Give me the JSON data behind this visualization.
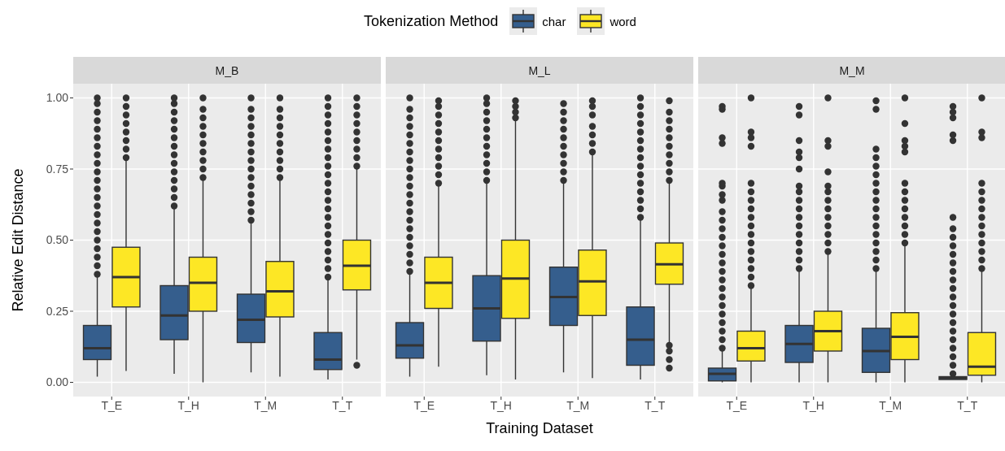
{
  "chart_data": [
    {
      "type": "box",
      "title": "M_B",
      "ylabel": "Relative Edit Distance",
      "legend_title": "Tokenization Method",
      "legend": "top",
      "grid": true,
      "categories": [
        "T_E",
        "T_H",
        "T_M",
        "T_T"
      ],
      "ylim": [
        -0.05,
        1.05
      ],
      "yticks": [
        {
          "value": 0,
          "label": "0.00"
        },
        {
          "value": 0.25,
          "label": "0.25"
        },
        {
          "value": 0.5,
          "label": "0.50"
        },
        {
          "value": 0.75,
          "label": "0.75"
        },
        {
          "value": 1,
          "label": "1.00"
        }
      ],
      "series": [
        {
          "name": "char",
          "color": "#355e8d",
          "boxes": [
            {
              "low": 0.02,
              "q1": 0.08,
              "median": 0.12,
              "q3": 0.2,
              "high": 0.37,
              "outliers": [
                0.38,
                0.41,
                0.44,
                0.47,
                0.5,
                0.53,
                0.56,
                0.59,
                0.62,
                0.65,
                0.68,
                0.71,
                0.74,
                0.77,
                0.8,
                0.83,
                0.86,
                0.89,
                0.92,
                0.95,
                0.98,
                1.0
              ]
            },
            {
              "low": 0.03,
              "q1": 0.15,
              "median": 0.235,
              "q3": 0.34,
              "high": 0.61,
              "outliers": [
                0.62,
                0.65,
                0.68,
                0.71,
                0.74,
                0.77,
                0.8,
                0.83,
                0.86,
                0.89,
                0.92,
                0.95,
                0.98,
                1.0
              ]
            },
            {
              "low": 0.035,
              "q1": 0.14,
              "median": 0.22,
              "q3": 0.31,
              "high": 0.56,
              "outliers": [
                0.57,
                0.6,
                0.63,
                0.66,
                0.69,
                0.72,
                0.75,
                0.78,
                0.81,
                0.84,
                0.87,
                0.9,
                0.93,
                0.96,
                1.0
              ]
            },
            {
              "low": 0.01,
              "q1": 0.045,
              "median": 0.08,
              "q3": 0.175,
              "high": 0.36,
              "outliers": [
                0.37,
                0.4,
                0.43,
                0.46,
                0.49,
                0.52,
                0.55,
                0.58,
                0.61,
                0.64,
                0.67,
                0.7,
                0.73,
                0.76,
                0.79,
                0.82,
                0.85,
                0.88,
                0.91,
                0.94,
                0.97,
                1.0
              ]
            }
          ]
        },
        {
          "name": "word",
          "color": "#fde725",
          "boxes": [
            {
              "low": 0.04,
              "q1": 0.265,
              "median": 0.37,
              "q3": 0.475,
              "high": 0.78,
              "outliers": [
                0.79,
                0.82,
                0.85,
                0.88,
                0.91,
                0.94,
                0.97,
                1.0
              ]
            },
            {
              "low": 0.0,
              "q1": 0.25,
              "median": 0.35,
              "q3": 0.44,
              "high": 0.71,
              "outliers": [
                0.72,
                0.75,
                0.78,
                0.81,
                0.84,
                0.87,
                0.9,
                0.93,
                0.96,
                1.0
              ]
            },
            {
              "low": 0.02,
              "q1": 0.23,
              "median": 0.32,
              "q3": 0.425,
              "high": 0.71,
              "outliers": [
                0.72,
                0.75,
                0.78,
                0.81,
                0.84,
                0.87,
                0.9,
                0.93,
                0.96,
                1.0
              ]
            },
            {
              "low": 0.08,
              "q1": 0.325,
              "median": 0.41,
              "q3": 0.5,
              "high": 0.75,
              "outliers": [
                0.06,
                0.76,
                0.79,
                0.82,
                0.85,
                0.88,
                0.91,
                0.94,
                0.97,
                1.0
              ]
            }
          ]
        }
      ]
    },
    {
      "type": "box",
      "title": "M_L",
      "xlabel": "Training Dataset",
      "grid": true,
      "tick_labels": "x",
      "categories": [
        "T_E",
        "T_H",
        "T_M",
        "T_T"
      ],
      "ylim": [
        -0.05,
        1.05
      ],
      "yticks": [
        0,
        0.25,
        0.5,
        0.75,
        1
      ],
      "series": [
        {
          "color": "#355e8d",
          "boxes": [
            {
              "low": 0.02,
              "q1": 0.085,
              "median": 0.13,
              "q3": 0.21,
              "high": 0.38,
              "outliers": [
                0.39,
                0.42,
                0.45,
                0.48,
                0.51,
                0.54,
                0.57,
                0.6,
                0.63,
                0.66,
                0.69,
                0.72,
                0.75,
                0.78,
                0.81,
                0.84,
                0.87,
                0.9,
                0.93,
                0.96,
                1.0
              ]
            },
            {
              "low": 0.025,
              "q1": 0.145,
              "median": 0.26,
              "q3": 0.375,
              "high": 0.7,
              "outliers": [
                0.71,
                0.74,
                0.77,
                0.8,
                0.83,
                0.86,
                0.89,
                0.92,
                0.95,
                0.98,
                1.0
              ]
            },
            {
              "low": 0.035,
              "q1": 0.2,
              "median": 0.3,
              "q3": 0.405,
              "high": 0.7,
              "outliers": [
                0.71,
                0.74,
                0.77,
                0.8,
                0.83,
                0.86,
                0.89,
                0.92,
                0.95,
                0.98
              ]
            },
            {
              "low": 0.01,
              "q1": 0.06,
              "median": 0.15,
              "q3": 0.265,
              "high": 0.57,
              "outliers": [
                0.58,
                0.61,
                0.64,
                0.67,
                0.7,
                0.73,
                0.76,
                0.79,
                0.82,
                0.85,
                0.88,
                0.91,
                0.94,
                0.97,
                1.0
              ]
            }
          ]
        },
        {
          "color": "#fde725",
          "boxes": [
            {
              "low": 0.055,
              "q1": 0.26,
              "median": 0.35,
              "q3": 0.44,
              "high": 0.69,
              "outliers": [
                0.7,
                0.73,
                0.76,
                0.79,
                0.82,
                0.85,
                0.88,
                0.91,
                0.94,
                0.97,
                0.99
              ]
            },
            {
              "low": 0.01,
              "q1": 0.225,
              "median": 0.365,
              "q3": 0.5,
              "high": 0.92,
              "outliers": [
                0.93,
                0.95,
                0.97,
                0.99
              ]
            },
            {
              "low": 0.015,
              "q1": 0.235,
              "median": 0.355,
              "q3": 0.465,
              "high": 0.8,
              "outliers": [
                0.81,
                0.84,
                0.87,
                0.9,
                0.94,
                0.97,
                0.99
              ]
            },
            {
              "low": 0.14,
              "q1": 0.345,
              "median": 0.415,
              "q3": 0.49,
              "high": 0.7,
              "outliers": [
                0.05,
                0.08,
                0.11,
                0.13,
                0.71,
                0.74,
                0.77,
                0.8,
                0.83,
                0.86,
                0.89,
                0.92,
                0.95,
                0.99
              ]
            }
          ]
        }
      ]
    },
    {
      "type": "box",
      "title": "M_M",
      "grid": true,
      "tick_labels": "x",
      "categories": [
        "T_E",
        "T_H",
        "T_M",
        "T_T"
      ],
      "ylim": [
        -0.05,
        1.05
      ],
      "yticks": [
        0,
        0.25,
        0.5,
        0.75,
        1
      ],
      "series": [
        {
          "color": "#355e8d",
          "boxes": [
            {
              "low": 0.0,
              "q1": 0.005,
              "median": 0.03,
              "q3": 0.05,
              "high": 0.11,
              "outliers": [
                0.12,
                0.15,
                0.18,
                0.21,
                0.24,
                0.27,
                0.3,
                0.33,
                0.36,
                0.39,
                0.42,
                0.45,
                0.48,
                0.51,
                0.54,
                0.57,
                0.6,
                0.64,
                0.66,
                0.69,
                0.7,
                0.84,
                0.86,
                0.96,
                0.97
              ]
            },
            {
              "low": 0.0,
              "q1": 0.07,
              "median": 0.135,
              "q3": 0.2,
              "high": 0.39,
              "outliers": [
                0.4,
                0.43,
                0.46,
                0.49,
                0.52,
                0.55,
                0.58,
                0.61,
                0.64,
                0.67,
                0.69,
                0.75,
                0.79,
                0.81,
                0.85,
                0.94,
                0.97
              ]
            },
            {
              "low": 0.0,
              "q1": 0.035,
              "median": 0.11,
              "q3": 0.19,
              "high": 0.39,
              "outliers": [
                0.4,
                0.43,
                0.46,
                0.49,
                0.52,
                0.55,
                0.58,
                0.61,
                0.64,
                0.67,
                0.7,
                0.73,
                0.76,
                0.79,
                0.82,
                0.96,
                0.99
              ]
            },
            {
              "low": 0.01,
              "q1": 0.01,
              "median": 0.015,
              "q3": 0.02,
              "high": 0.02,
              "outliers": [
                0.03,
                0.06,
                0.09,
                0.12,
                0.15,
                0.18,
                0.21,
                0.24,
                0.27,
                0.3,
                0.33,
                0.36,
                0.39,
                0.42,
                0.45,
                0.48,
                0.51,
                0.54,
                0.58,
                0.85,
                0.87,
                0.93,
                0.95,
                0.97
              ]
            }
          ]
        },
        {
          "color": "#fde725",
          "boxes": [
            {
              "low": 0.0,
              "q1": 0.075,
              "median": 0.12,
              "q3": 0.18,
              "high": 0.33,
              "outliers": [
                0.34,
                0.37,
                0.4,
                0.43,
                0.46,
                0.49,
                0.52,
                0.55,
                0.58,
                0.61,
                0.64,
                0.67,
                0.7,
                0.83,
                0.86,
                0.88,
                1.0
              ]
            },
            {
              "low": 0.0,
              "q1": 0.11,
              "median": 0.18,
              "q3": 0.25,
              "high": 0.45,
              "outliers": [
                0.46,
                0.49,
                0.52,
                0.55,
                0.58,
                0.61,
                0.64,
                0.67,
                0.69,
                0.74,
                0.83,
                0.85,
                1.0
              ]
            },
            {
              "low": 0.0,
              "q1": 0.08,
              "median": 0.16,
              "q3": 0.245,
              "high": 0.48,
              "outliers": [
                0.49,
                0.52,
                0.55,
                0.58,
                0.61,
                0.64,
                0.67,
                0.7,
                0.81,
                0.83,
                0.85,
                0.91,
                1.0
              ]
            },
            {
              "low": 0.0,
              "q1": 0.025,
              "median": 0.055,
              "q3": 0.175,
              "high": 0.39,
              "outliers": [
                0.4,
                0.43,
                0.46,
                0.49,
                0.52,
                0.55,
                0.58,
                0.61,
                0.64,
                0.67,
                0.7,
                0.86,
                0.88,
                1.0
              ]
            }
          ]
        }
      ]
    }
  ]
}
